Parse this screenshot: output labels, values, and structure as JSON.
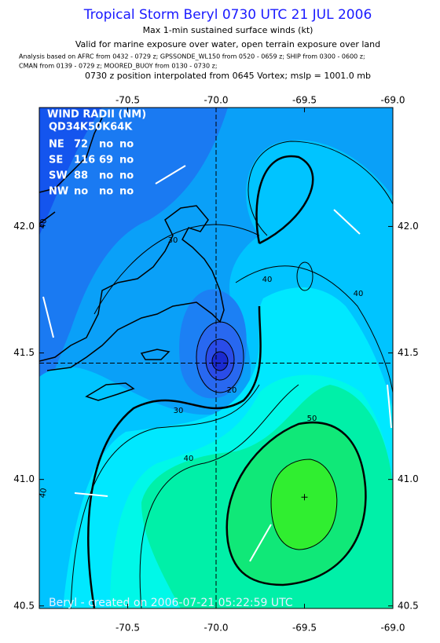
{
  "title": "Tropical Storm Beryl 0730 UTC 21 JUL 2006",
  "subtitle": "Max 1-min sustained surface winds (kt)",
  "valid_note": "Valid for marine exposure over water, open terrain exposure over land",
  "analysis_lines": [
    "Analysis based on  AFRC from 0432 - 0729 z;  GPSSONDE_WL150 from 0520 - 0659 z;  SHIP from 0300 - 0600 z;",
    "CMAN from 0139 - 0729 z;  MOORED_BUOY from 0130 - 0730 z;"
  ],
  "position_note": "0730 z position interpolated from 0645 Vortex; mslp = 1001.0 mb",
  "map": {
    "xlim": [
      -71,
      -69
    ],
    "ylim": [
      40.49,
      42.47
    ],
    "xticks": [
      -70.5,
      {
        "value": -70,
        "label": "-70.0"
      },
      -69.5,
      {
        "value": -69,
        "label": "-69.0"
      }
    ],
    "yticks": [
      40.5,
      {
        "value": 41,
        "label": "41.0"
      },
      41.5,
      {
        "value": 42,
        "label": "42.0"
      }
    ],
    "center": [
      -70,
      41.46
    ],
    "max_wind_location": [
      -69.5,
      40.93
    ],
    "contour_labels": [
      "30",
      "40",
      "40",
      "20",
      "30",
      "40",
      "50",
      "40",
      "40"
    ]
  },
  "wind_radii": {
    "title": "WIND RADII (NM)",
    "header": "QD34K50K64K",
    "rows": [
      [
        "NE",
        "72",
        "no",
        "no"
      ],
      [
        "SE",
        "116",
        "69",
        "no"
      ],
      [
        "SW",
        "88",
        "no",
        "no"
      ],
      [
        "NW",
        "no",
        "no",
        "no"
      ]
    ]
  },
  "footer": "Beryl - created on 2006-07-21 05:22:59 UTC"
}
